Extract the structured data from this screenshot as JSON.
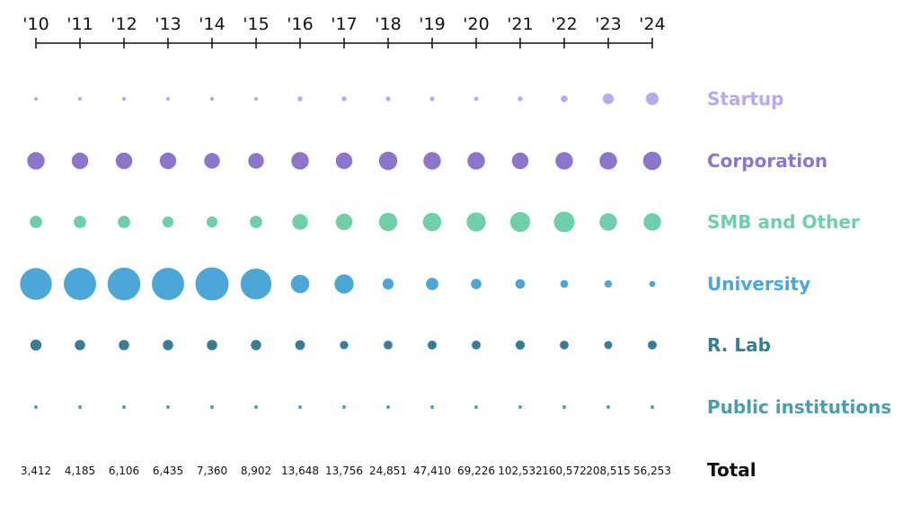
{
  "chart_data": {
    "type": "scatter",
    "x": [
      "'10",
      "'11",
      "'12",
      "'13",
      "'14",
      "'15",
      "'16",
      "'17",
      "'18",
      "'19",
      "'20",
      "'21",
      "'22",
      "'23",
      "'24"
    ],
    "series": [
      {
        "name": "Startup",
        "color": "#b9a9f0",
        "values": [
          0.5,
          0.5,
          0.5,
          0.5,
          0.5,
          0.5,
          0.8,
          0.8,
          0.7,
          0.7,
          0.6,
          0.8,
          1.5,
          3.8,
          5.2
        ]
      },
      {
        "name": "Corporation",
        "color": "#8b76cc",
        "values": [
          10,
          9,
          9,
          9,
          8,
          8,
          10,
          9,
          11,
          10,
          10,
          9,
          10,
          10,
          11
        ]
      },
      {
        "name": "SMB and Other",
        "color": "#6fcfa9",
        "values": [
          5,
          5,
          5,
          4,
          4,
          5,
          8,
          9,
          11,
          11,
          12,
          13,
          14,
          10,
          10
        ]
      },
      {
        "name": "University",
        "color": "#4ca6d6",
        "values": [
          33,
          34,
          35,
          34,
          36,
          31,
          11,
          12,
          4,
          5,
          3.5,
          3,
          2,
          1.8,
          1.2
        ]
      },
      {
        "name": "R. Lab",
        "color": "#397d93",
        "values": [
          4,
          3.5,
          3.5,
          3.5,
          3.5,
          3.5,
          3.1,
          2.3,
          2.5,
          2.6,
          2.6,
          2.8,
          2.5,
          2.1,
          2.6
        ]
      },
      {
        "name": "Public institutions",
        "color": "#4a9eac",
        "values": [
          0.4,
          0.4,
          0.4,
          0.4,
          0.4,
          0.4,
          0.4,
          0.4,
          0.4,
          0.4,
          0.4,
          0.4,
          0.4,
          0.4,
          0.4
        ]
      }
    ],
    "totals": [
      "3,412",
      "4,185",
      "6,106",
      "6,435",
      "7,360",
      "8,902",
      "13,648",
      "13,756",
      "24,851",
      "47,410",
      "69,226",
      "102,532",
      "160,572",
      "208,515",
      "56,253"
    ],
    "total_label": "Total"
  }
}
